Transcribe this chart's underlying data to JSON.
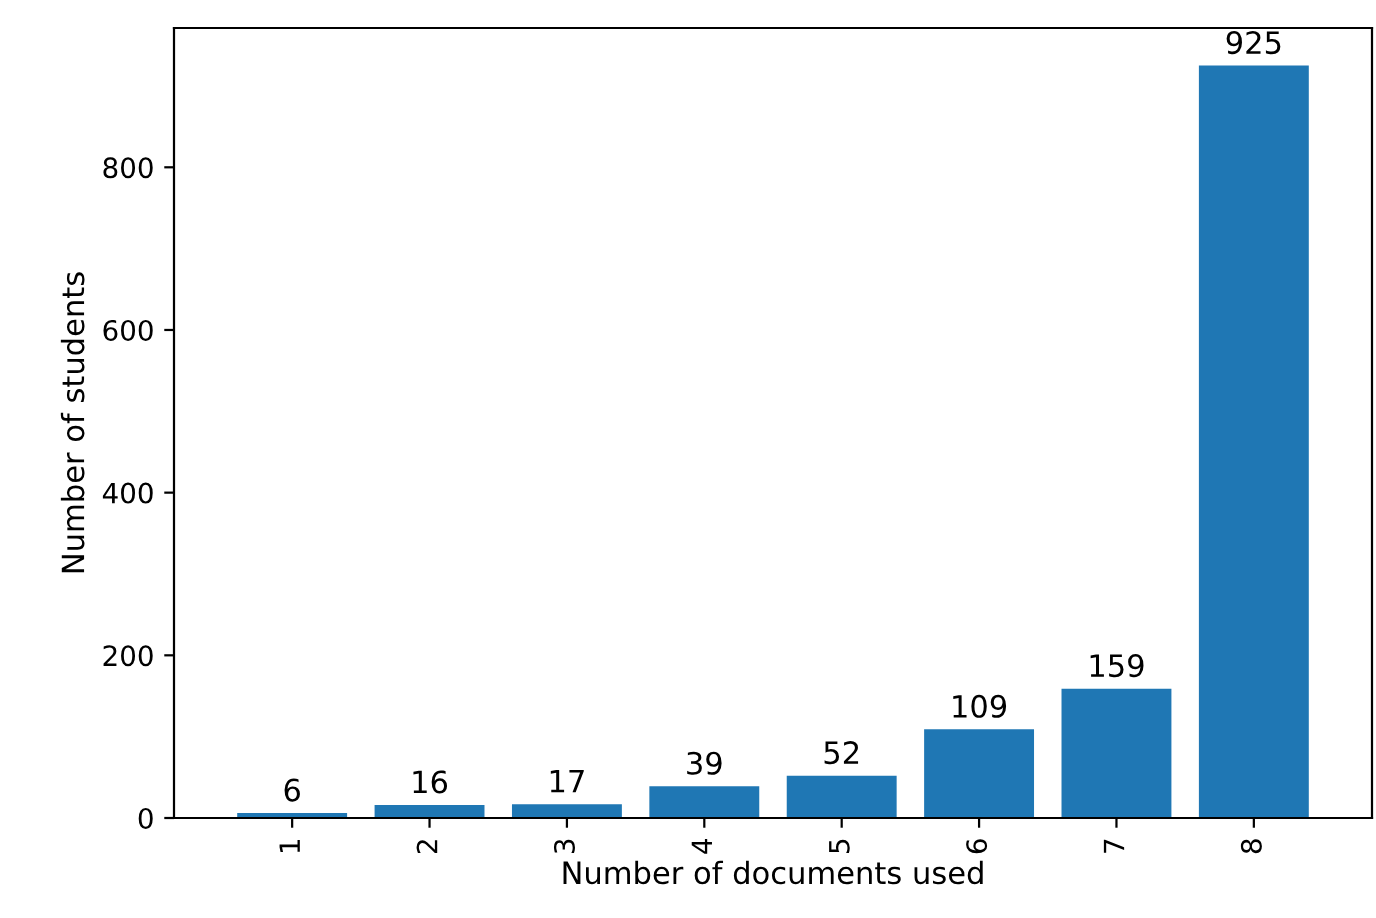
{
  "chart_data": {
    "type": "bar",
    "xlabel": "Number of documents used",
    "ylabel": "Number of students",
    "categories": [
      "1",
      "2",
      "3",
      "4",
      "5",
      "6",
      "7",
      "8"
    ],
    "values": [
      6,
      16,
      17,
      39,
      52,
      109,
      159,
      925
    ],
    "color": "#1f77b4",
    "ylim": [
      0,
      971.25
    ],
    "yticks": [
      0,
      200,
      400,
      600,
      800
    ],
    "data_labels": true,
    "grid": false,
    "legend": false
  }
}
